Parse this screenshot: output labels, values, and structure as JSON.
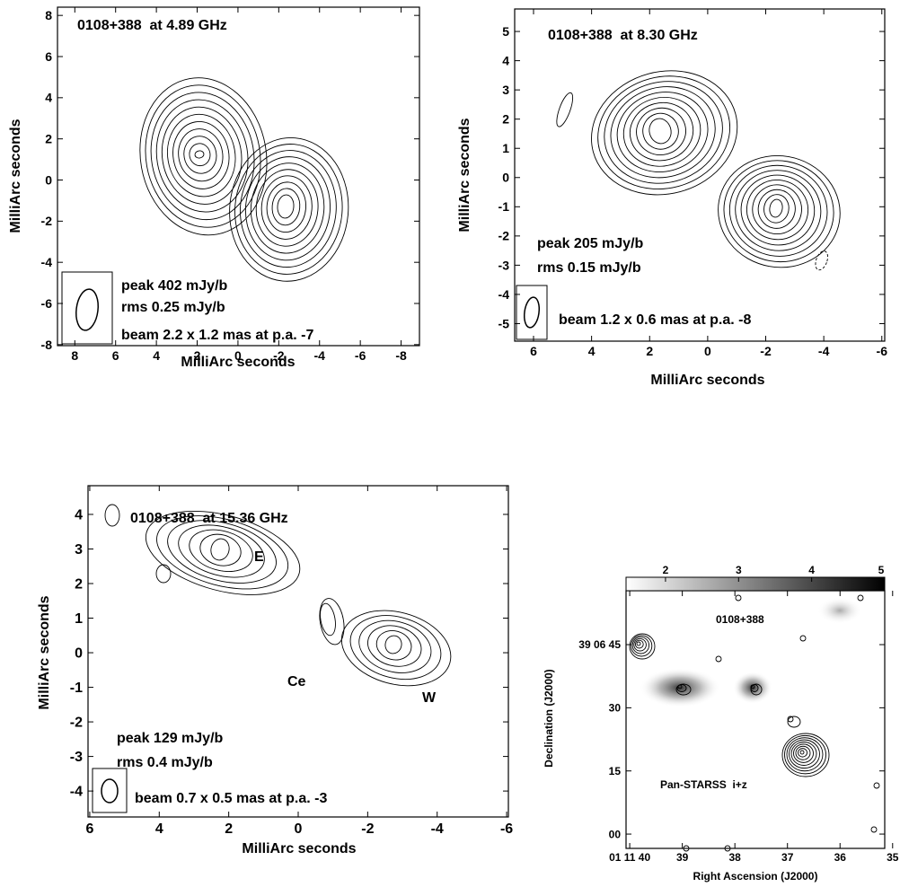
{
  "chart_data": [
    {
      "type": "contour",
      "title": "0108+388  at 4.89 GHz",
      "xlabel": "MilliArc seconds",
      "ylabel": "MilliArc seconds",
      "annotations": [
        "peak 402 mJy/b",
        "rms 0.25 mJy/b",
        "beam 2.2 x 1.2 mas at p.a. -7"
      ],
      "xlim": [
        8.85,
        -8.9
      ],
      "ylim": [
        -8.05,
        8.4
      ],
      "xticks": [
        8,
        6,
        4,
        2,
        0,
        -2,
        -4,
        -6,
        -8
      ],
      "yticks": [
        -8,
        -6,
        -4,
        -2,
        0,
        2,
        4,
        6,
        8
      ]
    },
    {
      "type": "contour",
      "title": "0108+388  at 8.30 GHz",
      "xlabel": "MilliArc seconds",
      "ylabel": "MilliArc seconds",
      "annotations": [
        "peak 205 mJy/b",
        "rms 0.15 mJy/b",
        "beam 1.2 x 0.6 mas at p.a. -8"
      ],
      "xlim": [
        6.65,
        -6.1
      ],
      "ylim": [
        -5.6,
        5.77
      ],
      "xticks": [
        6,
        4,
        2,
        0,
        -2,
        -4,
        -6
      ],
      "yticks": [
        -5,
        -4,
        -3,
        -2,
        -1,
        0,
        1,
        2,
        3,
        4,
        5
      ]
    },
    {
      "type": "contour",
      "title": "0108+388  at 15.36 GHz",
      "xlabel": "MilliArc seconds",
      "ylabel": "MilliArc seconds",
      "annotations": [
        "peak 129 mJy/b",
        "rms 0.4 mJy/b",
        "beam 0.7 x 0.5 mas at p.a. -3",
        "E",
        "Ce",
        "W"
      ],
      "xlim": [
        6.05,
        -6.05
      ],
      "ylim": [
        -4.75,
        4.83
      ],
      "xticks": [
        6,
        4,
        2,
        0,
        -2,
        -4,
        -6
      ],
      "yticks": [
        -4,
        -3,
        -2,
        -1,
        0,
        1,
        2,
        3,
        4
      ]
    },
    {
      "type": "image",
      "title": "0108+388",
      "xlabel": "Right Ascension (J2000)",
      "ylabel": "Declination (J2000)",
      "annotations": [
        "Pan-STARSS  i+z"
      ],
      "xlim": [
        40.07,
        35.15
      ],
      "ylim": [
        -3.4,
        57.8
      ],
      "xticks": [
        {
          "value": 40,
          "label": "01 11 40"
        },
        39,
        38,
        37,
        36,
        35
      ],
      "yticks": [
        {
          "value": 0,
          "label": "00"
        },
        15,
        30,
        {
          "value": 45,
          "label": "39 06 45"
        }
      ],
      "clim": [
        1.46,
        5
      ],
      "cticks": [
        2,
        3,
        4,
        5
      ]
    }
  ]
}
